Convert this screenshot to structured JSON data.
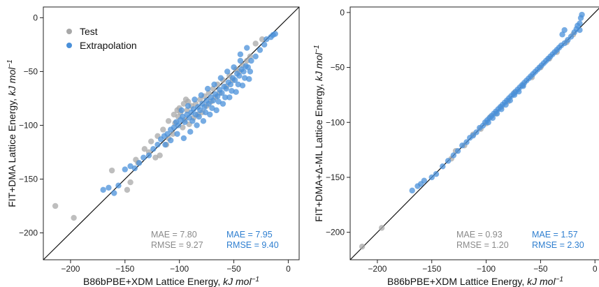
{
  "colors": {
    "test": "#a8a8a8",
    "extrapolation": "#4a90d9",
    "stat_test": "#8a8a8a",
    "stat_extrap": "#2f7fd0"
  },
  "legend": {
    "test": "Test",
    "extrapolation": "Extrapolation"
  },
  "chart_data": [
    {
      "type": "scatter",
      "xlabel_main": "B86bPBE+XDM Lattice Energy, ",
      "xlabel_unit": "kJ mol",
      "xlabel_exp": "−1",
      "ylabel_main": "FIT+DMA Lattice Energy, ",
      "ylabel_unit": "kJ mol",
      "ylabel_exp": "−1",
      "xlim": [
        -225,
        10
      ],
      "ylim": [
        -225,
        10
      ],
      "xticks": [
        -200,
        -150,
        -100,
        -50,
        0
      ],
      "xtick_labels": [
        "−200",
        "−150",
        "−100",
        "−50",
        "0"
      ],
      "yticks": [
        0,
        -50,
        -100,
        -150,
        -200
      ],
      "ytick_labels": [
        "0",
        "−50",
        "−100",
        "−150",
        "−200"
      ],
      "diagonal": true,
      "legend_position": "top-left",
      "stats": {
        "test_mae": "MAE = 7.80",
        "test_rmse": "RMSE = 9.27",
        "extrap_mae": "MAE = 7.95",
        "extrap_rmse": "RMSE = 9.40"
      },
      "series": [
        {
          "name": "Test",
          "points": [
            [
              -214,
              -175
            ],
            [
              -197,
              -186
            ],
            [
              -162,
              -142
            ],
            [
              -148,
              -160
            ],
            [
              -145,
              -153
            ],
            [
              -138,
              -135
            ],
            [
              -128,
              -125
            ],
            [
              -122,
              -130
            ],
            [
              -118,
              -128
            ],
            [
              -112,
              -118
            ],
            [
              -110,
              -112
            ],
            [
              -106,
              -108
            ],
            [
              -104,
              -98
            ],
            [
              -101,
              -92
            ],
            [
              -99,
              -88
            ],
            [
              -97,
              -102
            ],
            [
              -95,
              -95
            ],
            [
              -93,
              -86
            ],
            [
              -91,
              -99
            ],
            [
              -89,
              -82
            ],
            [
              -87,
              -93
            ],
            [
              -85,
              -80
            ],
            [
              -83,
              -90
            ],
            [
              -81,
              -76
            ],
            [
              -79,
              -88
            ],
            [
              -77,
              -73
            ],
            [
              -75,
              -82
            ],
            [
              -73,
              -70
            ],
            [
              -71,
              -78
            ],
            [
              -69,
              -66
            ],
            [
              -67,
              -74
            ],
            [
              -65,
              -62
            ],
            [
              -63,
              -70
            ],
            [
              -60,
              -58
            ],
            [
              -57,
              -64
            ],
            [
              -54,
              -54
            ],
            [
              -51,
              -58
            ],
            [
              -48,
              -48
            ],
            [
              -45,
              -50
            ],
            [
              -42,
              -44
            ],
            [
              -38,
              -40
            ],
            [
              -35,
              -36
            ],
            [
              -30,
              -24
            ],
            [
              -24,
              -20
            ],
            [
              -105,
              -90
            ],
            [
              -100,
              -84
            ],
            [
              -96,
              -80
            ],
            [
              -92,
              -78
            ],
            [
              -110,
              -96
            ],
            [
              -115,
              -104
            ],
            [
              -120,
              -110
            ],
            [
              -126,
              -115
            ],
            [
              -132,
              -122
            ],
            [
              -140,
              -132
            ],
            [
              -102,
              -86
            ],
            [
              -94,
              -76
            ]
          ]
        },
        {
          "name": "Extrapolation",
          "points": [
            [
              -170,
              -160
            ],
            [
              -165,
              -158
            ],
            [
              -160,
              -163
            ],
            [
              -156,
              -156
            ],
            [
              -150,
              -141
            ],
            [
              -145,
              -138
            ],
            [
              -141,
              -140
            ],
            [
              -137,
              -135
            ],
            [
              -133,
              -130
            ],
            [
              -128,
              -128
            ],
            [
              -124,
              -122
            ],
            [
              -120,
              -118
            ],
            [
              -117,
              -113
            ],
            [
              -114,
              -110
            ],
            [
              -111,
              -108
            ],
            [
              -108,
              -104
            ],
            [
              -105,
              -102
            ],
            [
              -103,
              -97
            ],
            [
              -101,
              -100
            ],
            [
              -99,
              -95
            ],
            [
              -97,
              -92
            ],
            [
              -95,
              -97
            ],
            [
              -93,
              -90
            ],
            [
              -91,
              -93
            ],
            [
              -89,
              -88
            ],
            [
              -87,
              -85
            ],
            [
              -85,
              -90
            ],
            [
              -83,
              -83
            ],
            [
              -81,
              -86
            ],
            [
              -79,
              -80
            ],
            [
              -77,
              -83
            ],
            [
              -75,
              -77
            ],
            [
              -73,
              -80
            ],
            [
              -71,
              -74
            ],
            [
              -69,
              -77
            ],
            [
              -67,
              -71
            ],
            [
              -65,
              -73
            ],
            [
              -63,
              -67
            ],
            [
              -61,
              -70
            ],
            [
              -59,
              -64
            ],
            [
              -57,
              -66
            ],
            [
              -55,
              -60
            ],
            [
              -53,
              -62
            ],
            [
              -51,
              -56
            ],
            [
              -49,
              -58
            ],
            [
              -47,
              -52
            ],
            [
              -45,
              -54
            ],
            [
              -43,
              -48
            ],
            [
              -41,
              -50
            ],
            [
              -39,
              -45
            ],
            [
              -37,
              -46
            ],
            [
              -34,
              -40
            ],
            [
              -30,
              -36
            ],
            [
              -26,
              -30
            ],
            [
              -22,
              -25
            ],
            [
              -20,
              -20
            ],
            [
              -16,
              -18
            ],
            [
              -14,
              -16
            ],
            [
              -12,
              -15
            ],
            [
              -96,
              -112
            ],
            [
              -90,
              -106
            ],
            [
              -84,
              -100
            ],
            [
              -78,
              -96
            ],
            [
              -72,
              -90
            ],
            [
              -66,
              -86
            ],
            [
              -60,
              -80
            ],
            [
              -54,
              -74
            ],
            [
              -48,
              -69
            ],
            [
              -42,
              -63
            ],
            [
              -36,
              -57
            ],
            [
              -98,
              -86
            ],
            [
              -92,
              -82
            ],
            [
              -86,
              -76
            ],
            [
              -80,
              -72
            ],
            [
              -74,
              -66
            ],
            [
              -68,
              -62
            ],
            [
              -62,
              -56
            ],
            [
              -56,
              -50
            ],
            [
              -102,
              -108
            ],
            [
              -108,
              -114
            ],
            [
              -113,
              -118
            ],
            [
              -88,
              -96
            ],
            [
              -82,
              -92
            ],
            [
              -76,
              -88
            ],
            [
              -70,
              -84
            ],
            [
              -64,
              -78
            ],
            [
              -58,
              -74
            ],
            [
              -52,
              -68
            ],
            [
              -46,
              -62
            ],
            [
              -40,
              -56
            ],
            [
              -35,
              -50
            ],
            [
              -44,
              -40
            ],
            [
              -50,
              -46
            ],
            [
              -38,
              -28
            ],
            [
              -44,
              -34
            ]
          ]
        }
      ]
    },
    {
      "type": "scatter",
      "xlabel_main": "B86bPBE+XDM Lattice Energy, ",
      "xlabel_unit": "kJ mol",
      "xlabel_exp": "−1",
      "ylabel_main": "FIT+DMA+Δ-ML Lattice Energy, ",
      "ylabel_unit": "kJ mol",
      "ylabel_exp": "−1",
      "xlim": [
        -225,
        5
      ],
      "ylim": [
        -225,
        5
      ],
      "xticks": [
        -200,
        -150,
        -100,
        -50,
        0
      ],
      "xtick_labels": [
        "−200",
        "−150",
        "−100",
        "−50",
        "0"
      ],
      "yticks": [
        0,
        -50,
        -100,
        -150,
        -200
      ],
      "ytick_labels": [
        "0",
        "−50",
        "−100",
        "−150",
        "−200"
      ],
      "diagonal": true,
      "stats": {
        "test_mae": "MAE = 0.93",
        "test_rmse": "RMSE = 1.20",
        "extrap_mae": "MAE = 1.57",
        "extrap_rmse": "RMSE = 2.30"
      },
      "series": [
        {
          "name": "Test",
          "points": [
            [
              -214,
              -213
            ],
            [
              -196,
              -196
            ],
            [
              -132,
              -133
            ],
            [
              -128,
              -126
            ],
            [
              -120,
              -121
            ],
            [
              -112,
              -111
            ],
            [
              -105,
              -106
            ],
            [
              -100,
              -101
            ],
            [
              -96,
              -95
            ],
            [
              -91,
              -92
            ],
            [
              -86,
              -86
            ],
            [
              -80,
              -81
            ],
            [
              -74,
              -73
            ],
            [
              -66,
              -66
            ],
            [
              -58,
              -59
            ],
            [
              -50,
              -50
            ],
            [
              -42,
              -42
            ],
            [
              -35,
              -36
            ],
            [
              -26,
              -27
            ],
            [
              -20,
              -20
            ]
          ]
        },
        {
          "name": "Extrapolation",
          "points": [
            [
              -168,
              -162
            ],
            [
              -163,
              -158
            ],
            [
              -160,
              -156
            ],
            [
              -157,
              -153
            ],
            [
              -150,
              -150
            ],
            [
              -146,
              -147
            ],
            [
              -140,
              -140
            ],
            [
              -135,
              -135
            ],
            [
              -130,
              -130
            ],
            [
              -126,
              -126
            ],
            [
              -122,
              -121
            ],
            [
              -118,
              -118
            ],
            [
              -115,
              -114
            ],
            [
              -112,
              -112
            ],
            [
              -109,
              -109
            ],
            [
              -106,
              -105
            ],
            [
              -103,
              -103
            ],
            [
              -101,
              -100
            ],
            [
              -99,
              -98
            ],
            [
              -97,
              -96
            ],
            [
              -95,
              -94
            ],
            [
              -93,
              -92
            ],
            [
              -91,
              -90
            ],
            [
              -89,
              -88
            ],
            [
              -87,
              -86
            ],
            [
              -85,
              -84
            ],
            [
              -83,
              -82
            ],
            [
              -81,
              -80
            ],
            [
              -79,
              -78
            ],
            [
              -77,
              -76
            ],
            [
              -75,
              -74
            ],
            [
              -73,
              -72
            ],
            [
              -71,
              -70
            ],
            [
              -69,
              -68
            ],
            [
              -67,
              -66
            ],
            [
              -65,
              -64
            ],
            [
              -63,
              -62
            ],
            [
              -61,
              -60
            ],
            [
              -59,
              -58
            ],
            [
              -57,
              -56
            ],
            [
              -55,
              -54
            ],
            [
              -53,
              -52
            ],
            [
              -51,
              -50
            ],
            [
              -49,
              -48
            ],
            [
              -47,
              -46
            ],
            [
              -45,
              -44
            ],
            [
              -43,
              -42
            ],
            [
              -41,
              -40
            ],
            [
              -39,
              -38
            ],
            [
              -37,
              -36
            ],
            [
              -35,
              -34
            ],
            [
              -33,
              -32
            ],
            [
              -31,
              -30
            ],
            [
              -28,
              -28
            ],
            [
              -25,
              -25
            ],
            [
              -22,
              -22
            ],
            [
              -19,
              -18
            ],
            [
              -17,
              -15
            ],
            [
              -16,
              -12
            ],
            [
              -14,
              -10
            ],
            [
              -13,
              -5
            ],
            [
              -12,
              -2
            ],
            [
              -28,
              -16
            ],
            [
              -30,
              -20
            ],
            [
              -14,
              -16
            ],
            [
              -98,
              -100
            ],
            [
              -94,
              -96
            ],
            [
              -90,
              -92
            ],
            [
              -86,
              -88
            ],
            [
              -82,
              -84
            ],
            [
              -78,
              -80
            ],
            [
              -74,
              -75
            ],
            [
              -70,
              -72
            ],
            [
              -66,
              -67
            ]
          ]
        }
      ]
    }
  ]
}
